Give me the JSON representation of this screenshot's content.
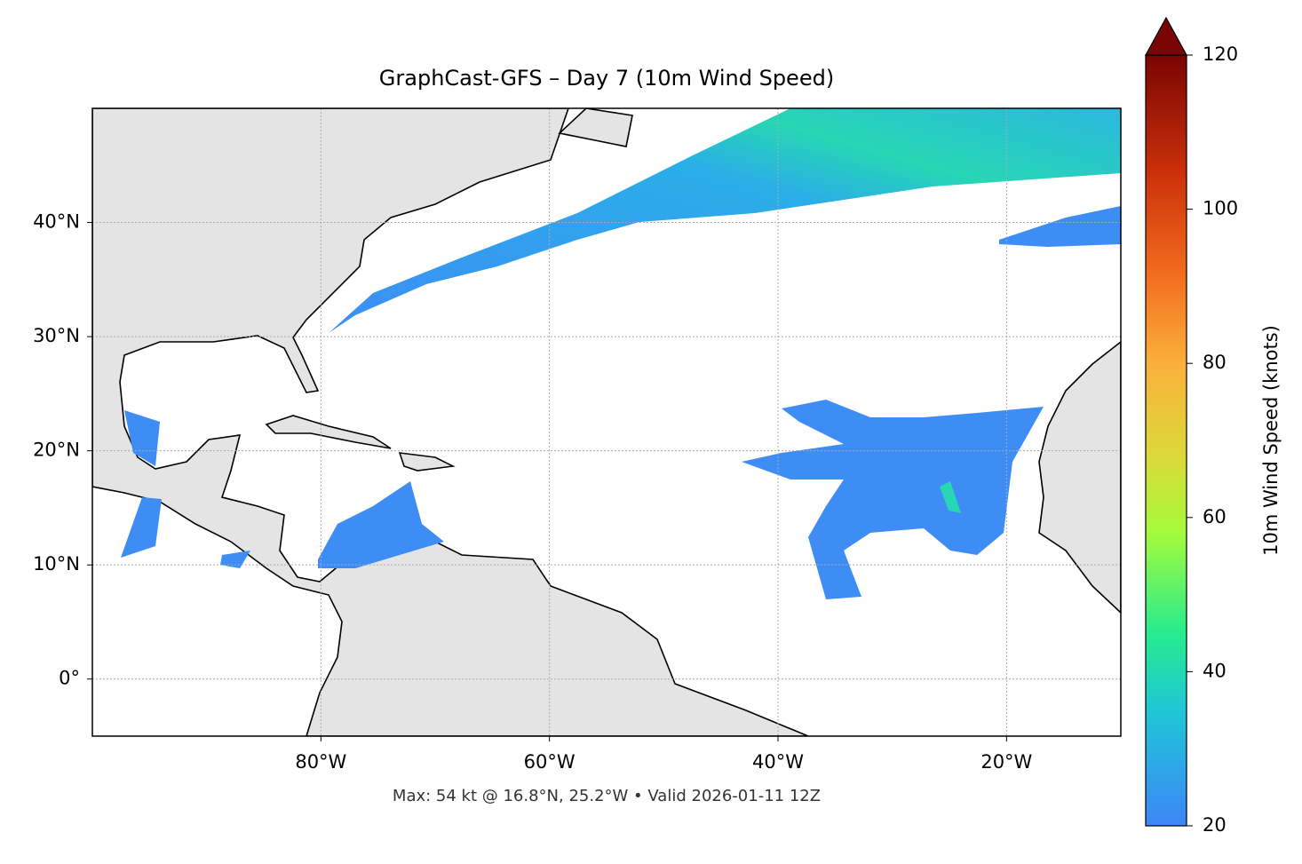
{
  "chart_data": {
    "type": "map",
    "title": "GraphCast-GFS – Day 7 (10m Wind Speed)",
    "footnote": "Max: 54 kt @ 16.8°N, 25.2°W • Valid 2026-01-11 12Z",
    "xlim": [
      -100,
      -10
    ],
    "ylim": [
      -5,
      50
    ],
    "xticks": [
      {
        "value": -80,
        "label": "80°W"
      },
      {
        "value": -60,
        "label": "60°W"
      },
      {
        "value": -40,
        "label": "40°W"
      },
      {
        "value": -20,
        "label": "20°W"
      }
    ],
    "yticks": [
      {
        "value": 0,
        "label": "0°"
      },
      {
        "value": 10,
        "label": "10°N"
      },
      {
        "value": 20,
        "label": "20°N"
      },
      {
        "value": 30,
        "label": "30°N"
      },
      {
        "value": 40,
        "label": "40°N"
      }
    ],
    "grid": true,
    "colorbar": {
      "label": "10m Wind Speed (knots)",
      "clim": [
        20,
        120
      ],
      "ticks": [
        20,
        40,
        60,
        80,
        100,
        120
      ]
    }
  }
}
